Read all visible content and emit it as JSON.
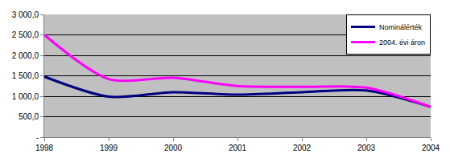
{
  "chart_data": {
    "type": "line",
    "categories": [
      "1998",
      "1999",
      "2000",
      "2001",
      "2002",
      "2003",
      "2004"
    ],
    "series": [
      {
        "name": "Nominálérték",
        "color": "#000080",
        "values": [
          1480,
          990,
          1100,
          1040,
          1100,
          1140,
          740
        ]
      },
      {
        "name": "2004. évi áron",
        "color": "#ff00ff",
        "values": [
          2500,
          1420,
          1450,
          1250,
          1230,
          1210,
          740
        ]
      }
    ],
    "ylim": [
      0,
      3000
    ],
    "yticks": [
      {
        "value": 0,
        "label": "-"
      },
      {
        "value": 500,
        "label": "500,0"
      },
      {
        "value": 1000,
        "label": "1 000,0"
      },
      {
        "value": 1500,
        "label": "1 500,0"
      },
      {
        "value": 2000,
        "label": "2 000,0"
      },
      {
        "value": 2500,
        "label": "2 500,0"
      },
      {
        "value": 3000,
        "label": "3 000,0"
      }
    ],
    "grid": true,
    "legend": "top right",
    "line_style": "smooth"
  }
}
